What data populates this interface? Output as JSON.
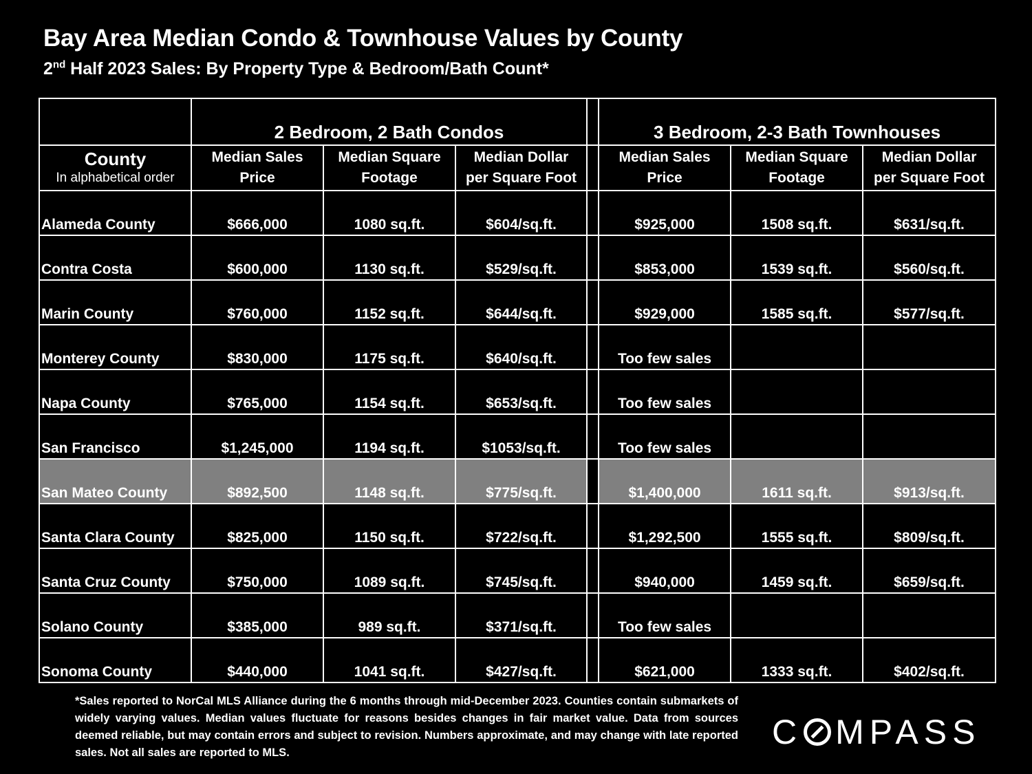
{
  "title": "Bay Area Median Condo & Townhouse Values by County",
  "subtitle": {
    "ordinal_number": "2",
    "ordinal_suffix": "nd",
    "rest": " Half 2023 Sales:  By Property Type & Bedroom/Bath Count*"
  },
  "table": {
    "groups": {
      "condos": "2 Bedroom, 2 Bath Condos",
      "townhouses": "3 Bedroom, 2-3 Bath Townhouses"
    },
    "county_header": {
      "line1": "County",
      "line2": "In alphabetical order"
    },
    "columns": [
      {
        "line1": "Median Sales",
        "line2": "Price"
      },
      {
        "line1": "Median Square",
        "line2": "Footage"
      },
      {
        "line1": "Median Dollar",
        "line2": "per Square Foot"
      },
      {
        "line1": "Median Sales",
        "line2": "Price"
      },
      {
        "line1": "Median Square",
        "line2": "Footage"
      },
      {
        "line1": "Median Dollar",
        "line2": "per Square Foot"
      }
    ],
    "rows": [
      {
        "county": "Alameda County",
        "c_price": "$666,000",
        "c_sqft": "1080 sq.ft.",
        "c_ppsf": "$604/sq.ft.",
        "t_price": "$925,000",
        "t_sqft": "1508 sq.ft.",
        "t_ppsf": "$631/sq.ft."
      },
      {
        "county": "Contra Costa",
        "c_price": "$600,000",
        "c_sqft": "1130 sq.ft.",
        "c_ppsf": "$529/sq.ft.",
        "t_price": "$853,000",
        "t_sqft": "1539 sq.ft.",
        "t_ppsf": "$560/sq.ft."
      },
      {
        "county": "Marin County",
        "c_price": "$760,000",
        "c_sqft": "1152 sq.ft.",
        "c_ppsf": "$644/sq.ft.",
        "t_price": "$929,000",
        "t_sqft": "1585 sq.ft.",
        "t_ppsf": "$577/sq.ft."
      },
      {
        "county": "Monterey County",
        "c_price": "$830,000",
        "c_sqft": "1175 sq.ft.",
        "c_ppsf": "$640/sq.ft.",
        "t_price": "Too few sales",
        "t_sqft": "",
        "t_ppsf": ""
      },
      {
        "county": "Napa County",
        "c_price": "$765,000",
        "c_sqft": "1154 sq.ft.",
        "c_ppsf": "$653/sq.ft.",
        "t_price": "Too few sales",
        "t_sqft": "",
        "t_ppsf": ""
      },
      {
        "county": "San Francisco",
        "c_price": "$1,245,000",
        "c_sqft": "1194 sq.ft.",
        "c_ppsf": "$1053/sq.ft.",
        "t_price": "Too few sales",
        "t_sqft": "",
        "t_ppsf": ""
      },
      {
        "county": "San Mateo County",
        "c_price": "$892,500",
        "c_sqft": "1148 sq.ft.",
        "c_ppsf": "$775/sq.ft.",
        "t_price": "$1,400,000",
        "t_sqft": "1611 sq.ft.",
        "t_ppsf": "$913/sq.ft.",
        "highlight": true
      },
      {
        "county": "Santa Clara County",
        "c_price": "$825,000",
        "c_sqft": "1150 sq.ft.",
        "c_ppsf": "$722/sq.ft.",
        "t_price": "$1,292,500",
        "t_sqft": "1555 sq.ft.",
        "t_ppsf": "$809/sq.ft."
      },
      {
        "county": "Santa Cruz County",
        "c_price": "$750,000",
        "c_sqft": "1089 sq.ft.",
        "c_ppsf": "$745/sq.ft.",
        "t_price": "$940,000",
        "t_sqft": "1459 sq.ft.",
        "t_ppsf": "$659/sq.ft."
      },
      {
        "county": "Solano County",
        "c_price": "$385,000",
        "c_sqft": "989 sq.ft.",
        "c_ppsf": "$371/sq.ft.",
        "t_price": "Too few sales",
        "t_sqft": "",
        "t_ppsf": ""
      },
      {
        "county": "Sonoma County",
        "c_price": "$440,000",
        "c_sqft": "1041 sq.ft.",
        "c_ppsf": "$427/sq.ft.",
        "t_price": "$621,000",
        "t_sqft": "1333 sq.ft.",
        "t_ppsf": "$402/sq.ft."
      }
    ],
    "highlight_color": "#808080"
  },
  "footnote": "*Sales reported to NorCal MLS Alliance during the 6 months through mid-December 2023. Counties contain submarkets of widely varying values. Median values fluctuate for reasons besides changes in fair market value. Data from sources deemed reliable, but may contain errors and subject to revision.  Numbers approximate, and may change with late reported sales. Not all sales are reported to MLS.",
  "logo": {
    "before": "C",
    "after": "MPASS",
    "o_icon": "compass-o-icon"
  }
}
